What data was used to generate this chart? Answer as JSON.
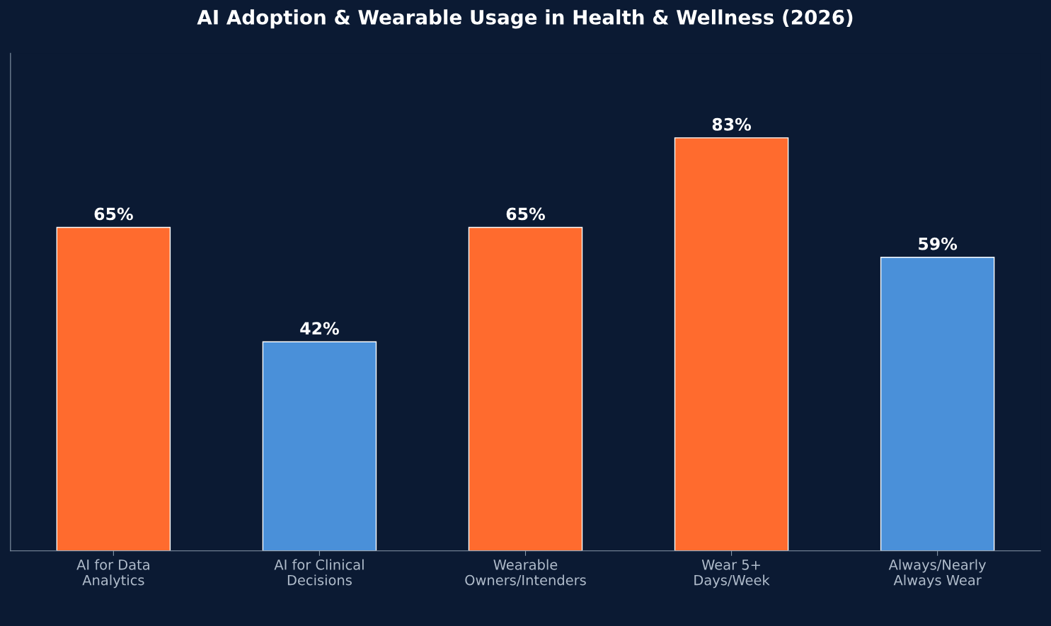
{
  "chart_data": {
    "type": "bar",
    "title": "AI Adoption & Wearable Usage in Health & Wellness (2026)",
    "categories": [
      "AI for Data\nAnalytics",
      "AI for Clinical\nDecisions",
      "Wearable\nOwners/Intenders",
      "Wear 5+\nDays/Week",
      "Always/Nearly\nAlways Wear"
    ],
    "values": [
      65,
      42,
      65,
      83,
      59
    ],
    "colors": [
      "#ff6b2e",
      "#4a90d9",
      "#ff6b2e",
      "#ff6b2e",
      "#4a90d9"
    ],
    "value_labels": [
      "65%",
      "42%",
      "65%",
      "83%",
      "59%"
    ],
    "ylim": [
      0,
      100
    ],
    "tick_labels": "x",
    "grid": false,
    "legend": false
  }
}
